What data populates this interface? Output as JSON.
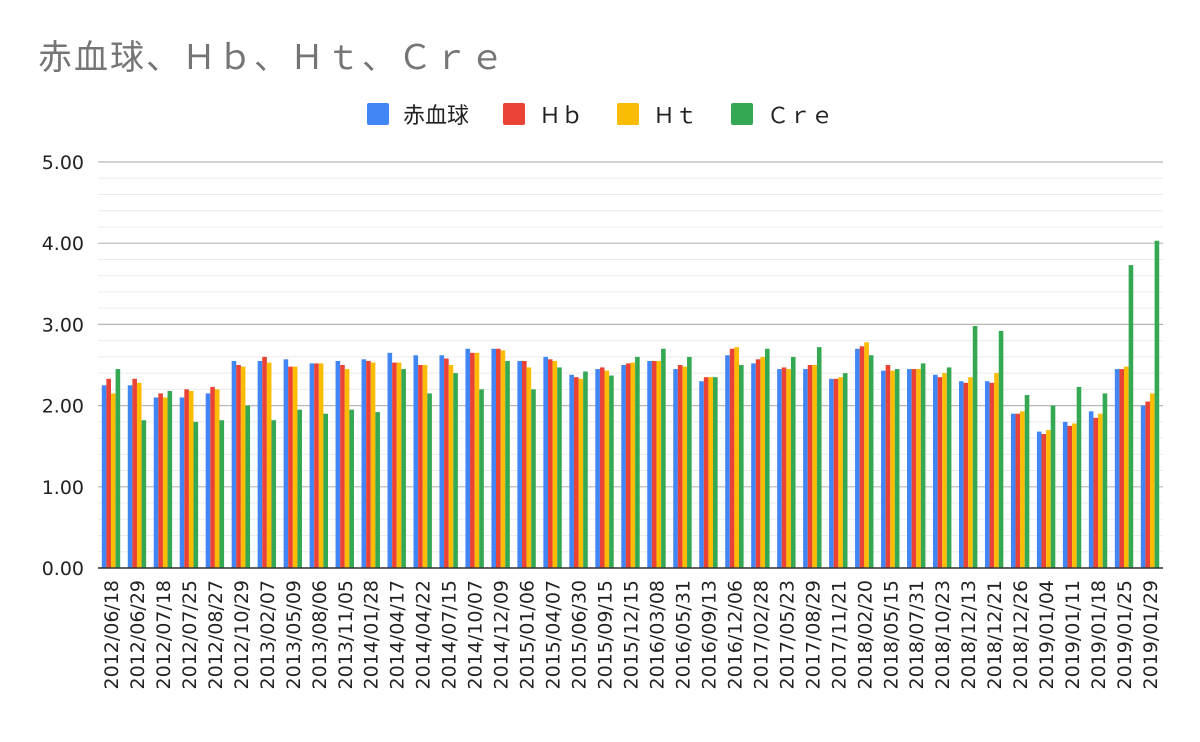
{
  "chart_data": {
    "type": "bar",
    "title": "赤血球、Ｈｂ、Ｈｔ、Ｃｒｅ",
    "xlabel": "",
    "ylabel": "",
    "ylim": [
      0,
      5
    ],
    "yticks": [
      "0.00",
      "1.00",
      "2.00",
      "3.00",
      "4.00",
      "5.00"
    ],
    "grid": true,
    "legend_position": "top",
    "categories": [
      "2012/06/18",
      "2012/06/29",
      "2012/07/18",
      "2012/07/25",
      "2012/08/27",
      "2012/10/29",
      "2013/02/07",
      "2013/05/09",
      "2013/08/06",
      "2013/11/05",
      "2014/01/28",
      "2014/04/17",
      "2014/04/22",
      "2014/07/15",
      "2014/10/07",
      "2014/12/09",
      "2015/01/06",
      "2015/04/07",
      "2015/06/30",
      "2015/09/15",
      "2015/12/15",
      "2016/03/08",
      "2016/05/31",
      "2016/09/13",
      "2016/12/06",
      "2017/02/28",
      "2017/05/23",
      "2017/08/29",
      "2017/11/21",
      "2018/02/20",
      "2018/05/15",
      "2018/07/31",
      "2018/10/23",
      "2018/12/13",
      "2018/12/21",
      "2018/12/26",
      "2019/01/04",
      "2019/01/11",
      "2019/01/18",
      "2019/01/25",
      "2019/01/29"
    ],
    "series": [
      {
        "name": "赤血球",
        "color": "#4285f4",
        "values": [
          2.25,
          2.25,
          2.1,
          2.1,
          2.15,
          2.55,
          2.55,
          2.57,
          2.52,
          2.55,
          2.57,
          2.65,
          2.62,
          2.62,
          2.7,
          2.7,
          2.55,
          2.6,
          2.38,
          2.45,
          2.5,
          2.55,
          2.45,
          2.3,
          2.62,
          2.52,
          2.45,
          2.45,
          2.33,
          2.7,
          2.43,
          2.45,
          2.38,
          2.3,
          2.3,
          1.9,
          1.68,
          1.8,
          1.93,
          2.45,
          2.0
        ]
      },
      {
        "name": "Ｈｂ",
        "color": "#ea4335",
        "values": [
          2.33,
          2.33,
          2.15,
          2.2,
          2.23,
          2.5,
          2.6,
          2.48,
          2.52,
          2.5,
          2.55,
          2.53,
          2.5,
          2.58,
          2.65,
          2.7,
          2.55,
          2.57,
          2.35,
          2.47,
          2.52,
          2.55,
          2.5,
          2.35,
          2.7,
          2.57,
          2.47,
          2.5,
          2.33,
          2.73,
          2.5,
          2.45,
          2.35,
          2.28,
          2.28,
          1.9,
          1.65,
          1.75,
          1.85,
          2.45,
          2.05
        ]
      },
      {
        "name": "Ｈｔ",
        "color": "#fbbc04",
        "values": [
          2.15,
          2.28,
          2.1,
          2.18,
          2.2,
          2.48,
          2.53,
          2.48,
          2.52,
          2.45,
          2.53,
          2.53,
          2.5,
          2.5,
          2.65,
          2.68,
          2.47,
          2.55,
          2.33,
          2.43,
          2.53,
          2.55,
          2.48,
          2.35,
          2.72,
          2.6,
          2.45,
          2.5,
          2.35,
          2.78,
          2.43,
          2.45,
          2.4,
          2.35,
          2.4,
          1.93,
          1.7,
          1.78,
          1.9,
          2.48,
          2.15
        ]
      },
      {
        "name": "Ｃｒｅ",
        "color": "#34a853",
        "values": [
          2.45,
          1.82,
          2.18,
          1.8,
          1.82,
          2.0,
          1.82,
          1.95,
          1.9,
          1.95,
          1.92,
          2.45,
          2.15,
          2.4,
          2.2,
          2.55,
          2.2,
          2.47,
          2.42,
          2.37,
          2.6,
          2.7,
          2.6,
          2.35,
          2.5,
          2.7,
          2.6,
          2.72,
          2.4,
          2.62,
          2.45,
          2.52,
          2.47,
          2.98,
          2.92,
          2.13,
          2.0,
          2.23,
          2.15,
          3.73,
          4.03
        ]
      }
    ]
  }
}
